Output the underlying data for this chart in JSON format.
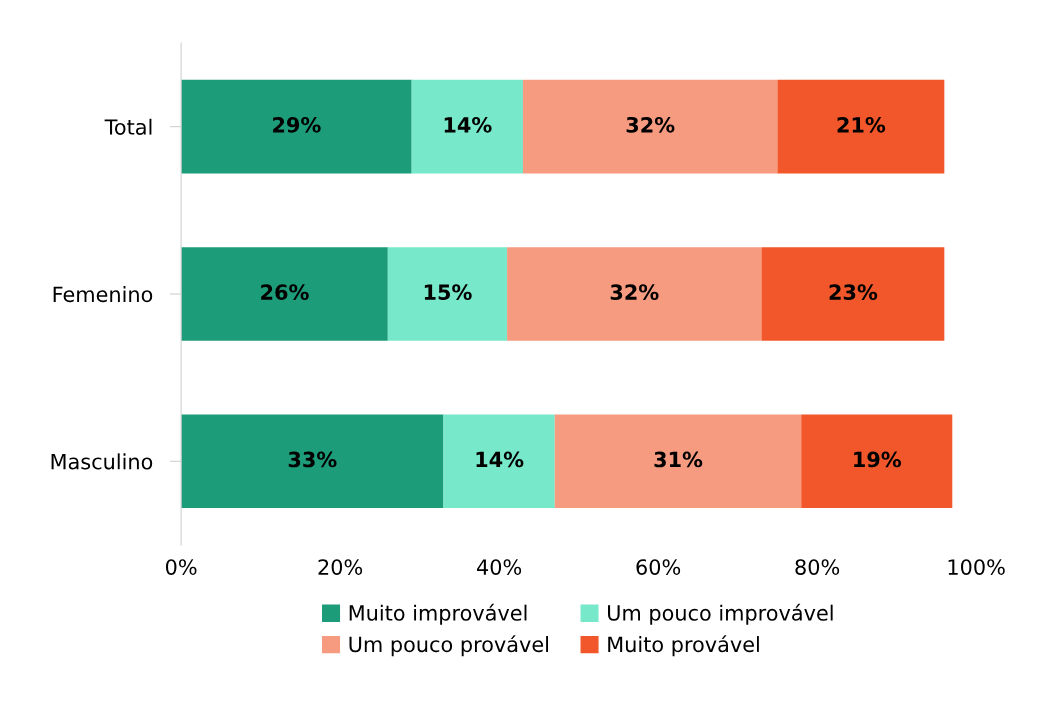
{
  "chart_data": {
    "type": "bar",
    "orientation": "horizontal",
    "stacked": true,
    "legend": "bottom",
    "grid": false,
    "categories": [
      "Total",
      "Femenino",
      "Masculino"
    ],
    "xlim": [
      0,
      100
    ],
    "xticks": [
      {
        "value": 0,
        "label": "0%"
      },
      {
        "value": 20,
        "label": "20%"
      },
      {
        "value": 40,
        "label": "40%"
      },
      {
        "value": 60,
        "label": "60%"
      },
      {
        "value": 80,
        "label": "80%"
      },
      {
        "value": 100,
        "label": "100%"
      }
    ],
    "series": [
      {
        "name": "Muito improvável",
        "color": "#1d9c7a",
        "values": [
          29,
          26,
          33
        ],
        "value_labels": [
          "29%",
          "26%",
          "33%"
        ]
      },
      {
        "name": "Um pouco improvável",
        "color": "#77e8c9",
        "values": [
          14,
          15,
          14
        ],
        "value_labels": [
          "14%",
          "15%",
          "14%"
        ]
      },
      {
        "name": "Um pouco provável",
        "color": "#f69a80",
        "values": [
          32,
          32,
          31
        ],
        "value_labels": [
          "32%",
          "32%",
          "31%"
        ]
      },
      {
        "name": "Muito provável",
        "color": "#f1572a",
        "values": [
          21,
          23,
          19
        ],
        "value_labels": [
          "21%",
          "23%",
          "19%"
        ]
      }
    ]
  }
}
